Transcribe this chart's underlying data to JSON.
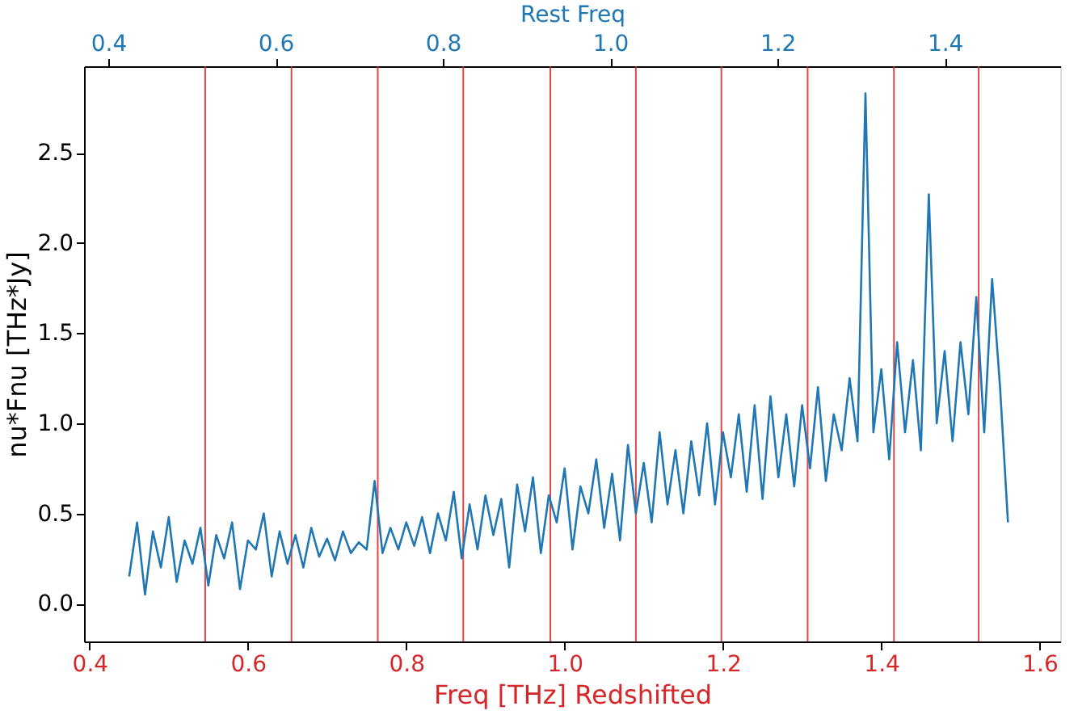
{
  "chart_data": {
    "type": "line",
    "xlabel": "Freq [THz] Redshifted",
    "ylabel": "nu*Fnu [THz*Jy]",
    "x2label": "Rest Freq",
    "xlim": [
      0.393,
      1.626
    ],
    "xticks": [
      {
        "value": 0.4,
        "label": "0.4"
      },
      {
        "value": 0.6,
        "label": "0.6"
      },
      {
        "value": 0.8,
        "label": "0.8"
      },
      {
        "value": 1.0,
        "label": "1.0"
      },
      {
        "value": 1.2,
        "label": "1.2"
      },
      {
        "value": 1.4,
        "label": "1.4"
      },
      {
        "value": 1.6,
        "label": "1.6"
      }
    ],
    "x2lim": [
      0.371,
      1.538
    ],
    "x2ticks": [
      {
        "value": 0.4,
        "label": "0.4"
      },
      {
        "value": 0.6,
        "label": "0.6"
      },
      {
        "value": 0.8,
        "label": "0.8"
      },
      {
        "value": 1.0,
        "label": "1.0"
      },
      {
        "value": 1.2,
        "label": "1.2"
      },
      {
        "value": 1.4,
        "label": "1.4"
      }
    ],
    "ylim": [
      -0.21,
      2.98
    ],
    "yticks": [
      {
        "value": 0,
        "label": "0.0"
      },
      {
        "value": 0.5,
        "label": "0.5"
      },
      {
        "value": 1.0,
        "label": "1.0"
      },
      {
        "value": 1.5,
        "label": "1.5"
      },
      {
        "value": 2.0,
        "label": "2.0"
      },
      {
        "value": 2.5,
        "label": "2.5"
      }
    ],
    "grid": false,
    "line_style": "solid",
    "marker": "none",
    "x": [
      0.45,
      0.46,
      0.47,
      0.48,
      0.49,
      0.5,
      0.51,
      0.52,
      0.53,
      0.54,
      0.55,
      0.56,
      0.57,
      0.58,
      0.59,
      0.6,
      0.61,
      0.62,
      0.63,
      0.64,
      0.65,
      0.66,
      0.67,
      0.68,
      0.69,
      0.7,
      0.71,
      0.72,
      0.73,
      0.74,
      0.75,
      0.76,
      0.77,
      0.78,
      0.79,
      0.8,
      0.81,
      0.82,
      0.83,
      0.84,
      0.85,
      0.86,
      0.87,
      0.88,
      0.89,
      0.9,
      0.91,
      0.92,
      0.93,
      0.94,
      0.95,
      0.96,
      0.97,
      0.98,
      0.99,
      1.0,
      1.01,
      1.02,
      1.03,
      1.04,
      1.05,
      1.06,
      1.07,
      1.08,
      1.09,
      1.1,
      1.11,
      1.12,
      1.13,
      1.14,
      1.15,
      1.16,
      1.17,
      1.18,
      1.19,
      1.2,
      1.21,
      1.22,
      1.23,
      1.24,
      1.25,
      1.26,
      1.27,
      1.28,
      1.29,
      1.3,
      1.31,
      1.32,
      1.33,
      1.34,
      1.35,
      1.36,
      1.37,
      1.38,
      1.39,
      1.4,
      1.41,
      1.42,
      1.43,
      1.44,
      1.45,
      1.46,
      1.47,
      1.48,
      1.49,
      1.5,
      1.51,
      1.52,
      1.53,
      1.54,
      1.55,
      1.56
    ],
    "series": [
      {
        "color": "#1f77b4",
        "values": [
          0.15,
          0.45,
          0.05,
          0.4,
          0.2,
          0.48,
          0.12,
          0.35,
          0.22,
          0.42,
          0.1,
          0.38,
          0.25,
          0.45,
          0.08,
          0.35,
          0.3,
          0.5,
          0.15,
          0.4,
          0.22,
          0.38,
          0.2,
          0.42,
          0.26,
          0.36,
          0.24,
          0.4,
          0.28,
          0.34,
          0.3,
          0.68,
          0.28,
          0.42,
          0.3,
          0.45,
          0.32,
          0.48,
          0.28,
          0.5,
          0.35,
          0.62,
          0.25,
          0.55,
          0.3,
          0.6,
          0.38,
          0.58,
          0.2,
          0.66,
          0.4,
          0.7,
          0.28,
          0.6,
          0.45,
          0.75,
          0.3,
          0.65,
          0.5,
          0.8,
          0.42,
          0.72,
          0.35,
          0.88,
          0.5,
          0.78,
          0.45,
          0.95,
          0.55,
          0.85,
          0.5,
          0.9,
          0.6,
          1.0,
          0.55,
          0.95,
          0.7,
          1.05,
          0.62,
          1.1,
          0.58,
          1.15,
          0.7,
          1.05,
          0.65,
          1.1,
          0.75,
          1.2,
          0.68,
          1.05,
          0.85,
          1.25,
          0.9,
          2.83,
          0.95,
          1.3,
          0.8,
          1.45,
          0.95,
          1.35,
          0.85,
          2.27,
          1.0,
          1.4,
          0.9,
          1.45,
          1.05,
          1.7,
          0.95,
          1.8,
          1.2,
          0.45
        ]
      }
    ],
    "ref_lines": [
      {
        "axis": "x",
        "value": 0.546,
        "color": "#d62728"
      },
      {
        "axis": "x",
        "value": 0.655,
        "color": "#d62728"
      },
      {
        "axis": "x",
        "value": 0.764,
        "color": "#d62728"
      },
      {
        "axis": "x",
        "value": 0.872,
        "color": "#d62728"
      },
      {
        "axis": "x",
        "value": 0.982,
        "color": "#d62728"
      },
      {
        "axis": "x",
        "value": 1.09,
        "color": "#d62728"
      },
      {
        "axis": "x",
        "value": 1.198,
        "color": "#d62728"
      },
      {
        "axis": "x",
        "value": 1.307,
        "color": "#d62728"
      },
      {
        "axis": "x",
        "value": 1.416,
        "color": "#d62728"
      },
      {
        "axis": "x",
        "value": 1.523,
        "color": "#d62728"
      }
    ]
  }
}
